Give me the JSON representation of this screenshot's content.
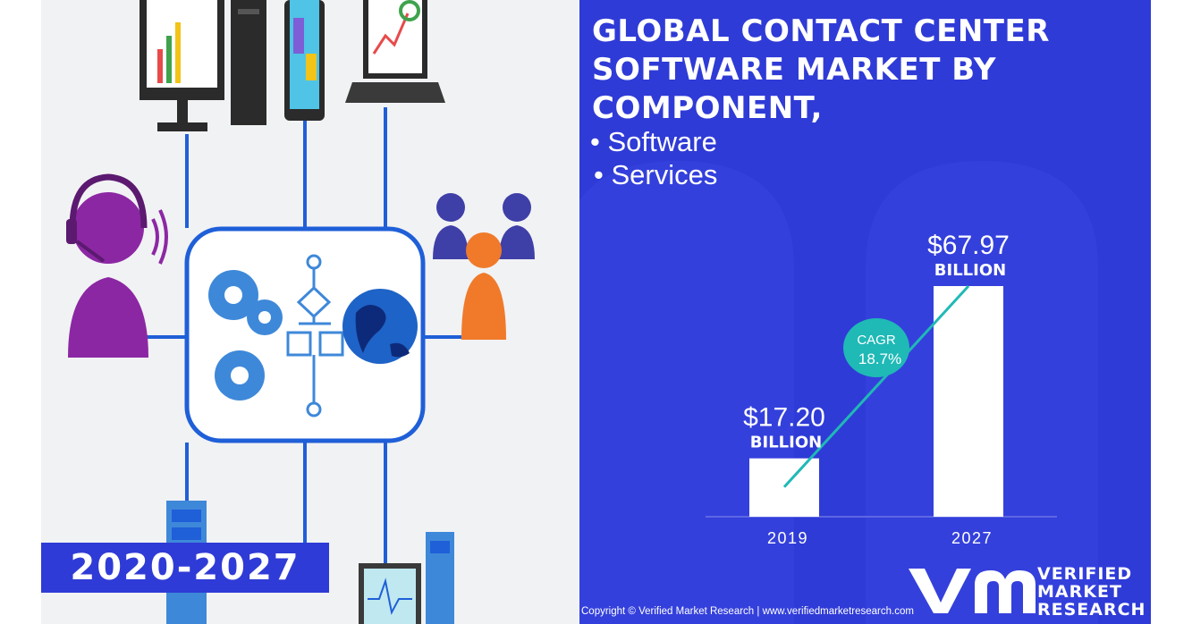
{
  "headline": "GLOBAL CONTACT CENTER SOFTWARE MARKET BY COMPONENT,",
  "components": [
    "Software",
    "Services"
  ],
  "years_badge": "2020-2027",
  "copyright": "Copyright © Verified Market Research | www.verifiedmarketresearch.com",
  "logo": {
    "line1": "VERIFIED",
    "line2": "MARKET",
    "line3": "RESEARCH"
  },
  "chart_data": {
    "type": "bar",
    "categories": [
      "2019",
      "2027"
    ],
    "values": [
      17.2,
      67.97
    ],
    "value_labels": [
      "$17.20",
      "$67.97"
    ],
    "unit_label": "BILLION",
    "cagr_label": "CAGR",
    "cagr_value": "18.7%",
    "ylim": [
      0,
      67.97
    ],
    "bar_color": "#ffffff",
    "background_color": "#2f3bd6",
    "trend_color": "#1fb9b6"
  }
}
